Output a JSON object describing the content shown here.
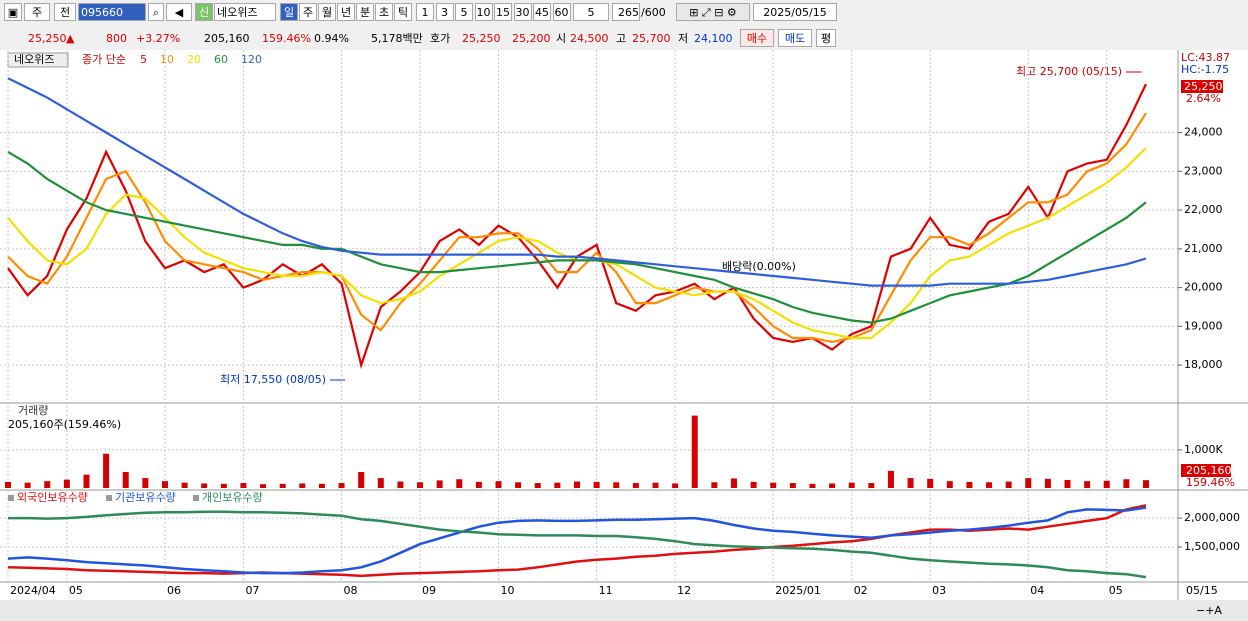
{
  "toolbar": {
    "market": "주",
    "prev": "전",
    "code": "095660",
    "badge": "신",
    "name": "네오위즈",
    "periods": [
      "일",
      "주",
      "월",
      "년",
      "분",
      "초",
      "틱"
    ],
    "intervals": [
      "1",
      "3",
      "5",
      "10",
      "15",
      "30",
      "45",
      "60"
    ],
    "interval_select": "5",
    "count": "265",
    "count_max": "/600",
    "date": "2025/05/15"
  },
  "quote": {
    "price": "25,250",
    "arrow": "▲",
    "change": "800",
    "change_pct": "+3.27%",
    "volume": "205,160",
    "volume_pct": "159.46%",
    "turnover": "0.94%",
    "amount": "5,178백만",
    "bid_label": "호가",
    "ask": "25,250",
    "bid": "25,200",
    "open_label": "시",
    "open": "24,500",
    "high_label": "고",
    "high": "25,700",
    "low_label": "저",
    "low": "24,100",
    "buy": "매수",
    "sell": "매도",
    "avg": "평"
  },
  "chart_data": [
    {
      "type": "line",
      "title": "네오위즈",
      "series_label": "종가 단순",
      "categories": [
        "2024/04",
        null,
        null,
        "05",
        null,
        null,
        null,
        null,
        "06",
        null,
        null,
        null,
        "07",
        null,
        null,
        null,
        null,
        "08",
        null,
        null,
        null,
        "09",
        null,
        null,
        null,
        "10",
        null,
        null,
        null,
        null,
        "11",
        null,
        null,
        null,
        "12",
        null,
        null,
        null,
        null,
        "2025/01",
        null,
        null,
        null,
        "02",
        null,
        null,
        null,
        "03",
        null,
        null,
        null,
        null,
        "04",
        null,
        null,
        null,
        "05",
        null,
        null
      ],
      "last_date_label": "05/15",
      "series": [
        {
          "name": "5",
          "color": "#e00000",
          "values": [
            20500,
            19800,
            20300,
            21500,
            22300,
            23500,
            22500,
            21200,
            20500,
            20700,
            20400,
            20600,
            20000,
            20200,
            20600,
            20300,
            20600,
            20100,
            18000,
            19500,
            19900,
            20400,
            21200,
            21500,
            21100,
            21600,
            21300,
            20700,
            20000,
            20800,
            21100,
            19600,
            19400,
            19800,
            19900,
            20100,
            19700,
            20000,
            19200,
            18700,
            18600,
            18700,
            18400,
            18800,
            19000,
            20800,
            21000,
            21800,
            21100,
            21000,
            21700,
            21900,
            22600,
            21800,
            23000,
            23200,
            23300,
            24200,
            25250
          ]
        },
        {
          "name": "10",
          "color": "#ff8c00",
          "values": [
            20800,
            20300,
            20100,
            20800,
            21800,
            22800,
            23000,
            22200,
            21200,
            20700,
            20600,
            20500,
            20400,
            20200,
            20300,
            20400,
            20400,
            20300,
            19300,
            18900,
            19600,
            20100,
            20700,
            21300,
            21300,
            21400,
            21400,
            21000,
            20400,
            20400,
            20900,
            20400,
            19600,
            19600,
            19800,
            20000,
            19900,
            19900,
            19500,
            19000,
            18700,
            18700,
            18600,
            18700,
            18900,
            19800,
            20700,
            21300,
            21300,
            21100,
            21400,
            21800,
            22200,
            22200,
            22400,
            23000,
            23200,
            23700,
            24500
          ]
        },
        {
          "name": "20",
          "color": "#f2e000",
          "values": [
            21800,
            21200,
            20700,
            20600,
            21000,
            21900,
            22400,
            22300,
            21800,
            21300,
            20900,
            20700,
            20500,
            20400,
            20300,
            20300,
            20400,
            20300,
            19800,
            19600,
            19700,
            19900,
            20300,
            20600,
            20900,
            21200,
            21300,
            21200,
            20900,
            20700,
            20700,
            20600,
            20300,
            20000,
            19900,
            19800,
            19900,
            19900,
            19700,
            19400,
            19100,
            18900,
            18800,
            18700,
            18700,
            19100,
            19600,
            20300,
            20700,
            20800,
            21100,
            21400,
            21600,
            21800,
            22100,
            22400,
            22700,
            23100,
            23600
          ]
        },
        {
          "name": "60",
          "color": "#1f8f3a",
          "values": [
            23500,
            23200,
            22800,
            22500,
            22200,
            22000,
            21900,
            21800,
            21700,
            21600,
            21500,
            21400,
            21300,
            21200,
            21100,
            21100,
            21000,
            21000,
            20800,
            20600,
            20500,
            20400,
            20400,
            20450,
            20500,
            20550,
            20600,
            20650,
            20700,
            20700,
            20700,
            20650,
            20600,
            20500,
            20400,
            20300,
            20200,
            20000,
            19850,
            19700,
            19500,
            19350,
            19250,
            19150,
            19100,
            19200,
            19400,
            19600,
            19800,
            19900,
            20000,
            20100,
            20300,
            20600,
            20900,
            21200,
            21500,
            21800,
            22200
          ]
        },
        {
          "name": "120",
          "color": "#2f5fd8",
          "values": [
            25400,
            25150,
            24900,
            24600,
            24300,
            24000,
            23700,
            23400,
            23100,
            22800,
            22500,
            22200,
            21900,
            21650,
            21400,
            21200,
            21050,
            20950,
            20900,
            20850,
            20850,
            20850,
            20850,
            20850,
            20850,
            20850,
            20850,
            20850,
            20800,
            20800,
            20750,
            20700,
            20650,
            20600,
            20550,
            20500,
            20450,
            20400,
            20350,
            20300,
            20250,
            20200,
            20150,
            20100,
            20050,
            20050,
            20050,
            20050,
            20100,
            20100,
            20100,
            20100,
            20150,
            20200,
            20300,
            20400,
            20500,
            20600,
            20750
          ]
        }
      ],
      "ylim": [
        17100,
        26000
      ],
      "yticks": [
        {
          "value": 18000,
          "label": "18,000"
        },
        {
          "value": 19000,
          "label": "19,000"
        },
        {
          "value": 20000,
          "label": "20,000"
        },
        {
          "value": 21000,
          "label": "21,000"
        },
        {
          "value": 22000,
          "label": "22,000"
        },
        {
          "value": 23000,
          "label": "23,000"
        },
        {
          "value": 24000,
          "label": "24,000"
        }
      ],
      "grid": true,
      "annotations": {
        "high": "최고 25,700 (05/15)",
        "low": "최저 17,550 (08/05)",
        "dividend": "배당락(0.00%)"
      },
      "side_labels": {
        "lc": "LC:43.87",
        "hc": "HC:-1.75",
        "last": "25,250",
        "last_pct": "2.64%"
      }
    },
    {
      "type": "bar",
      "title": "거래량",
      "subtitle": "205,160주(159.46%)",
      "color": "#d40000",
      "values": [
        160000,
        140000,
        180000,
        220000,
        350000,
        900000,
        420000,
        260000,
        180000,
        140000,
        120000,
        110000,
        130000,
        100000,
        110000,
        120000,
        110000,
        130000,
        420000,
        260000,
        170000,
        150000,
        200000,
        230000,
        160000,
        180000,
        150000,
        130000,
        140000,
        170000,
        160000,
        150000,
        130000,
        140000,
        120000,
        1900000,
        150000,
        250000,
        160000,
        140000,
        130000,
        110000,
        120000,
        140000,
        130000,
        450000,
        260000,
        240000,
        180000,
        160000,
        150000,
        170000,
        260000,
        240000,
        210000,
        180000,
        190000,
        230000,
        205160
      ],
      "ylim": [
        0,
        2100000
      ],
      "yticks": [
        {
          "value": 1000000,
          "label": "1,000K"
        }
      ],
      "grid": true,
      "side_labels": {
        "last": "205,160",
        "last_pct": "159.46%"
      }
    },
    {
      "type": "line",
      "series": [
        {
          "name": "외국인보유수량",
          "color": "#e01010",
          "values": [
            1150000,
            1140000,
            1130000,
            1120000,
            1100000,
            1090000,
            1080000,
            1070000,
            1060000,
            1050000,
            1050000,
            1040000,
            1050000,
            1060000,
            1050000,
            1040000,
            1030000,
            1020000,
            1000000,
            1020000,
            1040000,
            1050000,
            1060000,
            1070000,
            1080000,
            1100000,
            1110000,
            1150000,
            1200000,
            1250000,
            1280000,
            1300000,
            1330000,
            1350000,
            1380000,
            1400000,
            1420000,
            1450000,
            1470000,
            1500000,
            1520000,
            1550000,
            1580000,
            1600000,
            1640000,
            1700000,
            1750000,
            1800000,
            1800000,
            1780000,
            1800000,
            1820000,
            1800000,
            1850000,
            1900000,
            1950000,
            2000000,
            2150000,
            2220000
          ]
        },
        {
          "name": "기관보유수량",
          "color": "#2255dd",
          "values": [
            1300000,
            1320000,
            1300000,
            1270000,
            1240000,
            1220000,
            1200000,
            1180000,
            1150000,
            1120000,
            1100000,
            1080000,
            1060000,
            1050000,
            1050000,
            1060000,
            1080000,
            1100000,
            1150000,
            1250000,
            1400000,
            1550000,
            1650000,
            1750000,
            1850000,
            1920000,
            1950000,
            1960000,
            1950000,
            1950000,
            1960000,
            1970000,
            1970000,
            1980000,
            1990000,
            2000000,
            1950000,
            1880000,
            1820000,
            1780000,
            1760000,
            1730000,
            1700000,
            1680000,
            1660000,
            1700000,
            1720000,
            1750000,
            1780000,
            1800000,
            1830000,
            1870000,
            1920000,
            1960000,
            2100000,
            2150000,
            2140000,
            2130000,
            2180000
          ]
        },
        {
          "name": "개인보유수량",
          "color": "#2e8b57",
          "values": [
            2000000,
            2000000,
            1990000,
            2000000,
            2020000,
            2050000,
            2070000,
            2090000,
            2100000,
            2100000,
            2110000,
            2110000,
            2100000,
            2100000,
            2090000,
            2080000,
            2060000,
            2040000,
            1980000,
            1950000,
            1900000,
            1850000,
            1800000,
            1770000,
            1750000,
            1720000,
            1710000,
            1700000,
            1700000,
            1700000,
            1690000,
            1690000,
            1670000,
            1640000,
            1600000,
            1550000,
            1530000,
            1510000,
            1500000,
            1490000,
            1480000,
            1470000,
            1450000,
            1420000,
            1400000,
            1350000,
            1300000,
            1270000,
            1250000,
            1230000,
            1210000,
            1200000,
            1180000,
            1150000,
            1100000,
            1080000,
            1050000,
            1030000,
            980000
          ]
        }
      ],
      "ylim": [
        930000,
        2450000
      ],
      "yticks": [
        {
          "value": 2000000,
          "label": "2,000,000"
        },
        {
          "value": 1500000,
          "label": "1,500,000"
        }
      ],
      "grid": true
    }
  ]
}
